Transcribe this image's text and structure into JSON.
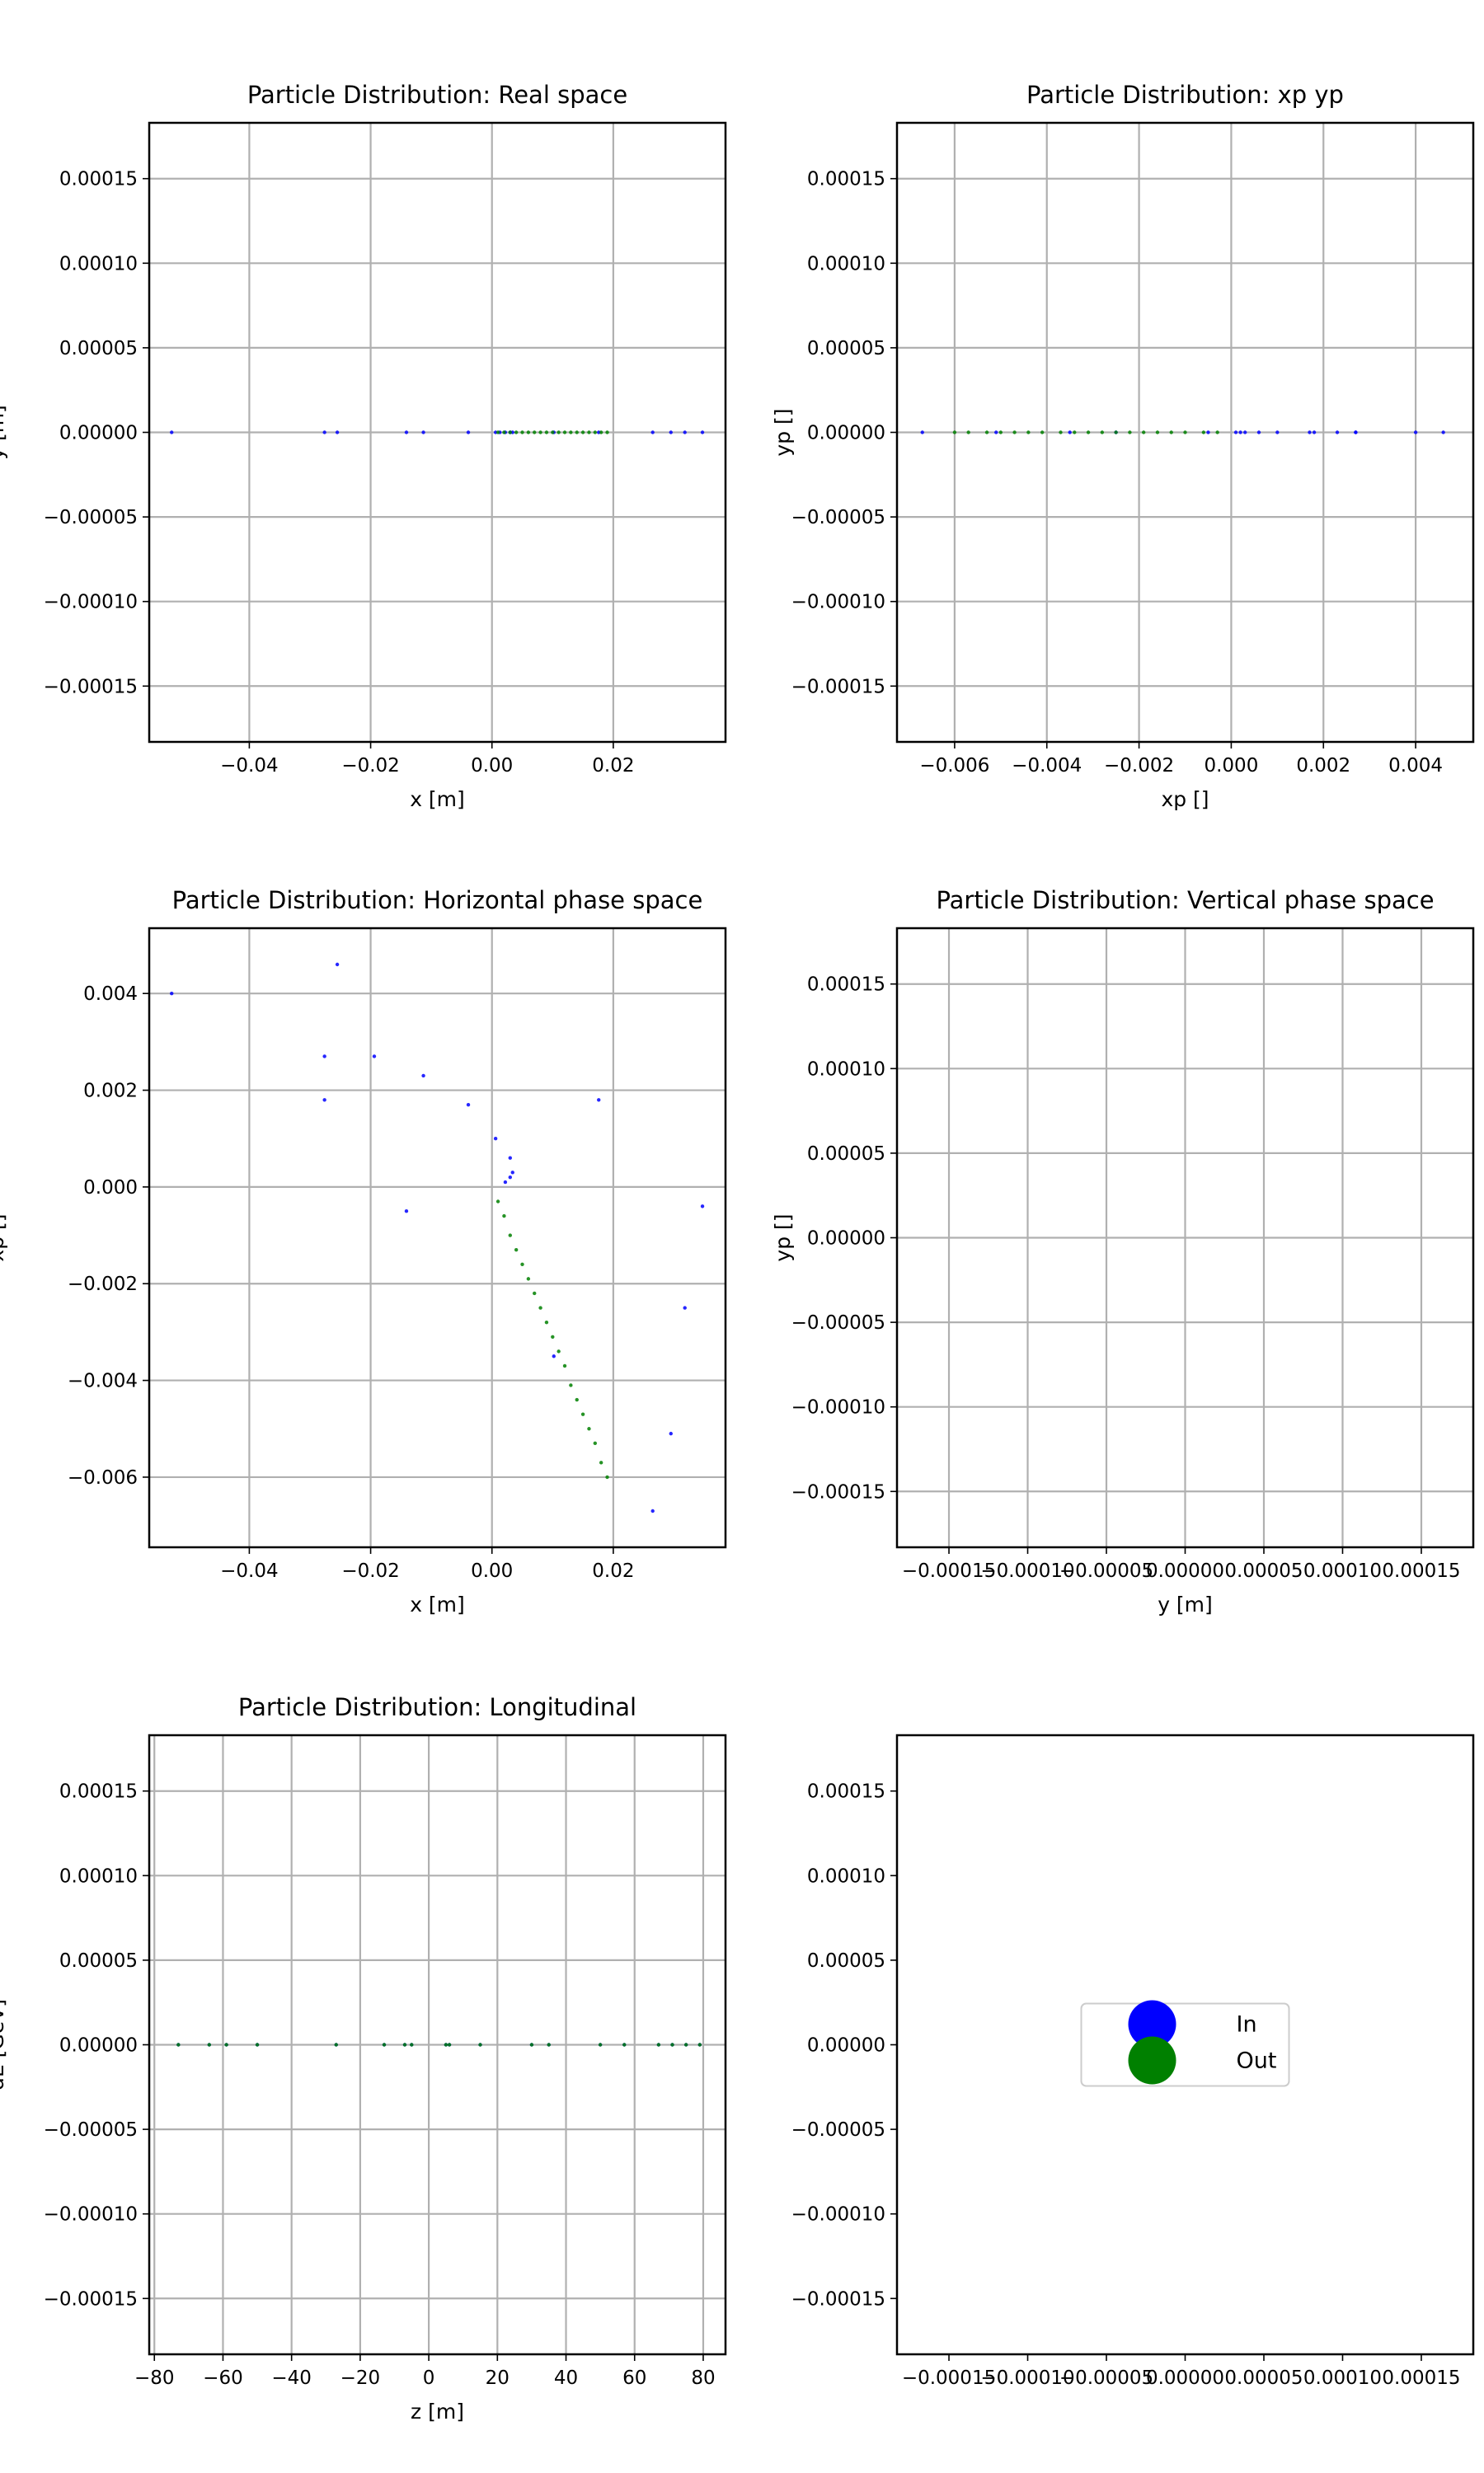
{
  "chart_data": [
    {
      "id": "real-space",
      "type": "scatter",
      "title": "Particle Distribution: Real space",
      "xlabel": "x [m]",
      "ylabel": "y [m]",
      "xlim": [
        -0.0565,
        0.0385
      ],
      "ylim": [
        -0.000183,
        0.000183
      ],
      "xticks": [
        -0.04,
        -0.02,
        0.0,
        0.02
      ],
      "xticklabels": [
        "−0.04",
        "−0.02",
        "0.00",
        "0.02"
      ],
      "yticks": [
        0.00015,
        0.0001,
        5e-05,
        0,
        -5e-05,
        -0.0001,
        -0.00015
      ],
      "yticklabels": [
        "0.00015",
        "0.00010",
        "0.00005",
        "0.00000",
        "−0.00005",
        "−0.00010",
        "−0.00015"
      ],
      "grid": true,
      "series": [
        {
          "name": "In",
          "color": "#0000ff",
          "x": [
            -0.0528,
            -0.0276,
            -0.0255,
            -0.0141,
            -0.0113,
            -0.0039,
            0.0006,
            0.0013,
            0.0022,
            0.003,
            0.0034,
            0.0102,
            0.0176,
            0.0265,
            0.0295,
            0.0318,
            0.0347
          ],
          "y": [
            0,
            0,
            0,
            0,
            0,
            0,
            0,
            0,
            0,
            0,
            0,
            0,
            0,
            0,
            0,
            0,
            0
          ]
        },
        {
          "name": "Out",
          "color": "#008000",
          "x": [
            0.001,
            0.002,
            0.003,
            0.004,
            0.005,
            0.006,
            0.007,
            0.008,
            0.009,
            0.01,
            0.011,
            0.012,
            0.013,
            0.014,
            0.015,
            0.016,
            0.017,
            0.018,
            0.019
          ],
          "y": [
            0,
            0,
            0,
            0,
            0,
            0,
            0,
            0,
            0,
            0,
            0,
            0,
            0,
            0,
            0,
            0,
            0,
            0,
            0
          ]
        }
      ]
    },
    {
      "id": "xp-yp",
      "type": "scatter",
      "title": "Particle Distribution: xp yp",
      "xlabel": "xp []",
      "ylabel": "yp []",
      "xlim": [
        -0.00725,
        0.00525
      ],
      "ylim": [
        -0.000183,
        0.000183
      ],
      "xticks": [
        -0.006,
        -0.004,
        -0.002,
        0.0,
        0.002,
        0.004
      ],
      "xticklabels": [
        "−0.006",
        "−0.004",
        "−0.002",
        "0.000",
        "0.002",
        "0.004"
      ],
      "yticks": [
        0.00015,
        0.0001,
        5e-05,
        0,
        -5e-05,
        -0.0001,
        -0.00015
      ],
      "yticklabels": [
        "0.00015",
        "0.00010",
        "0.00005",
        "0.00000",
        "−0.00005",
        "−0.00010",
        "−0.00015"
      ],
      "grid": true,
      "series": [
        {
          "name": "In",
          "color": "#0000ff",
          "x": [
            0.004,
            0.0046,
            0.0027,
            0.0027,
            0.0023,
            0.0018,
            0.0017,
            0.001,
            0.0006,
            0.0003,
            0.0002,
            0.0001,
            -0.0005,
            -0.0025,
            -0.0035,
            -0.0051,
            -0.0067
          ],
          "y": [
            0,
            0,
            0,
            0,
            0,
            0,
            0,
            0,
            0,
            0,
            0,
            0,
            0,
            0,
            0,
            0,
            0
          ]
        },
        {
          "name": "Out",
          "color": "#008000",
          "x": [
            -0.0003,
            -0.0006,
            -0.001,
            -0.0013,
            -0.0016,
            -0.0019,
            -0.0022,
            -0.0025,
            -0.0028,
            -0.0031,
            -0.0034,
            -0.0037,
            -0.0041,
            -0.0044,
            -0.0047,
            -0.005,
            -0.0053,
            -0.0057,
            -0.006
          ],
          "y": [
            0,
            0,
            0,
            0,
            0,
            0,
            0,
            0,
            0,
            0,
            0,
            0,
            0,
            0,
            0,
            0,
            0,
            0,
            0
          ]
        }
      ]
    },
    {
      "id": "horizontal-phase-space",
      "type": "scatter",
      "title": "Particle Distribution: Horizontal phase space",
      "xlabel": "x [m]",
      "ylabel": "xp []",
      "xlim": [
        -0.0565,
        0.0385
      ],
      "ylim": [
        -0.00745,
        0.00535
      ],
      "xticks": [
        -0.04,
        -0.02,
        0.0,
        0.02
      ],
      "xticklabels": [
        "−0.04",
        "−0.02",
        "0.00",
        "0.02"
      ],
      "yticks": [
        0.004,
        0.002,
        0.0,
        -0.002,
        -0.004,
        -0.006
      ],
      "yticklabels": [
        "0.004",
        "0.002",
        "0.000",
        "−0.002",
        "−0.004",
        "−0.006"
      ],
      "grid": true,
      "series": [
        {
          "name": "In",
          "color": "#0000ff",
          "x": [
            -0.0528,
            -0.0255,
            -0.0276,
            -0.0194,
            -0.0276,
            -0.0113,
            -0.0039,
            0.0006,
            0.003,
            0.0034,
            0.003,
            0.0022,
            0.0176,
            -0.0141,
            0.0347,
            0.0318,
            0.0102,
            0.0295,
            0.0265
          ],
          "y": [
            0.004,
            0.0046,
            0.0027,
            0.0027,
            0.0018,
            0.0023,
            0.0017,
            0.001,
            0.0006,
            0.0003,
            0.0002,
            0.0001,
            0.0018,
            -0.0005,
            -0.0004,
            -0.0025,
            -0.0035,
            -0.0051,
            -0.0067
          ]
        },
        {
          "name": "Out",
          "color": "#008000",
          "x": [
            0.001,
            0.002,
            0.003,
            0.004,
            0.005,
            0.006,
            0.007,
            0.008,
            0.009,
            0.01,
            0.011,
            0.012,
            0.013,
            0.014,
            0.015,
            0.016,
            0.017,
            0.018,
            0.019
          ],
          "y": [
            -0.0003,
            -0.0006,
            -0.001,
            -0.0013,
            -0.0016,
            -0.0019,
            -0.0022,
            -0.0025,
            -0.0028,
            -0.0031,
            -0.0034,
            -0.0037,
            -0.0041,
            -0.0044,
            -0.0047,
            -0.005,
            -0.0053,
            -0.0057,
            -0.006
          ]
        }
      ]
    },
    {
      "id": "vertical-phase-space",
      "type": "scatter",
      "title": "Particle Distribution: Vertical phase space",
      "xlabel": "y [m]",
      "ylabel": "yp []",
      "xlim": [
        -0.000183,
        0.000183
      ],
      "ylim": [
        -0.000183,
        0.000183
      ],
      "xticks": [
        -0.00015,
        -0.0001,
        -5e-05,
        0,
        5e-05,
        0.0001,
        0.00015
      ],
      "xticklabels": [
        "−0.00015",
        "−0.00010",
        "−0.00005",
        "0.00000",
        "0.00005",
        "0.00010",
        "0.00015"
      ],
      "yticks": [
        0.00015,
        0.0001,
        5e-05,
        0,
        -5e-05,
        -0.0001,
        -0.00015
      ],
      "yticklabels": [
        "0.00015",
        "0.00010",
        "0.00005",
        "0.00000",
        "−0.00005",
        "−0.00010",
        "−0.00015"
      ],
      "grid": true,
      "series": []
    },
    {
      "id": "longitudinal",
      "type": "scatter",
      "title": "Particle Distribution: Longitudinal",
      "xlabel": "z [m]",
      "ylabel": "dE [GeV]",
      "xlim": [
        -81.5,
        86.5
      ],
      "ylim": [
        -0.000183,
        0.000183
      ],
      "xticks": [
        -80,
        -60,
        -40,
        -20,
        0,
        20,
        40,
        60,
        80
      ],
      "xticklabels": [
        "−80",
        "−60",
        "−40",
        "−20",
        "0",
        "20",
        "40",
        "60",
        "80"
      ],
      "yticks": [
        0.00015,
        0.0001,
        5e-05,
        0,
        -5e-05,
        -0.0001,
        -0.00015
      ],
      "yticklabels": [
        "0.00015",
        "0.00010",
        "0.00005",
        "0.00000",
        "−0.00005",
        "−0.00010",
        "−0.00015"
      ],
      "grid": true,
      "series": [
        {
          "name": "In",
          "color": "#0000ff",
          "x": [
            -73,
            -64,
            -59,
            -50,
            -27,
            -13,
            -7,
            -5,
            5,
            6,
            15,
            30,
            35,
            50,
            57,
            67,
            71,
            75,
            79
          ],
          "y": [
            0,
            0,
            0,
            0,
            0,
            0,
            0,
            0,
            0,
            0,
            0,
            0,
            0,
            0,
            0,
            0,
            0,
            0,
            0
          ]
        },
        {
          "name": "Out",
          "color": "#008000",
          "x": [
            -73,
            -64,
            -59,
            -50,
            -27,
            -13,
            -7,
            -5,
            5,
            6,
            15,
            30,
            35,
            50,
            57,
            67,
            71,
            75,
            79
          ],
          "y": [
            0,
            0,
            0,
            0,
            0,
            0,
            0,
            0,
            0,
            0,
            0,
            0,
            0,
            0,
            0,
            0,
            0,
            0,
            0
          ]
        }
      ]
    },
    {
      "id": "legend-panel",
      "type": "scatter",
      "title": "",
      "xlabel": "",
      "ylabel": "",
      "xlim": [
        -0.000183,
        0.000183
      ],
      "ylim": [
        -0.000183,
        0.000183
      ],
      "xticks": [
        -0.00015,
        -0.0001,
        -5e-05,
        0,
        5e-05,
        0.0001,
        0.00015
      ],
      "xticklabels": [
        "−0.00015",
        "−0.00010",
        "−0.00005",
        "0.00000",
        "0.00005",
        "0.00010",
        "0.00015"
      ],
      "yticks": [
        0.00015,
        0.0001,
        5e-05,
        0,
        -5e-05,
        -0.0001,
        -0.00015
      ],
      "yticklabels": [
        "0.00015",
        "0.00010",
        "0.00005",
        "0.00000",
        "−0.00005",
        "−0.00010",
        "−0.00015"
      ],
      "grid": false,
      "legend": {
        "placement": "center",
        "entries": [
          {
            "label": "In",
            "color": "#0000ff"
          },
          {
            "label": "Out",
            "color": "#008000"
          }
        ]
      },
      "series": []
    }
  ]
}
